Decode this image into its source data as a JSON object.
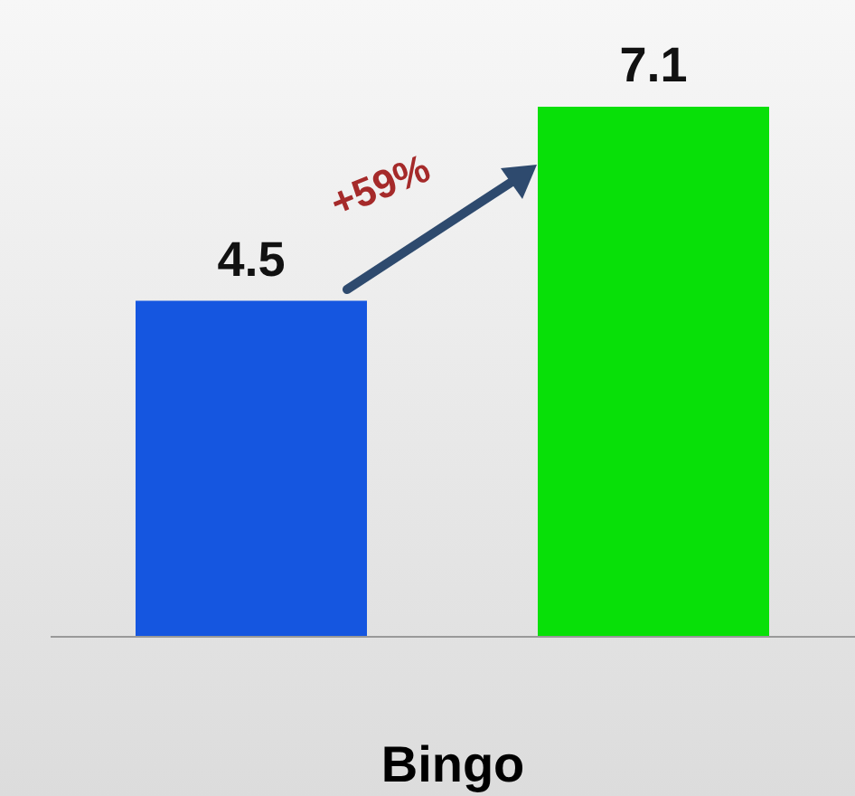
{
  "chart_data": {
    "type": "bar",
    "categories": [
      null,
      null
    ],
    "xlabel": "Bingo",
    "values": [
      4.5,
      7.1
    ],
    "colors": [
      "#1556e0",
      "#08e008"
    ],
    "data_labels": true,
    "annotations": [
      "+59%"
    ]
  }
}
